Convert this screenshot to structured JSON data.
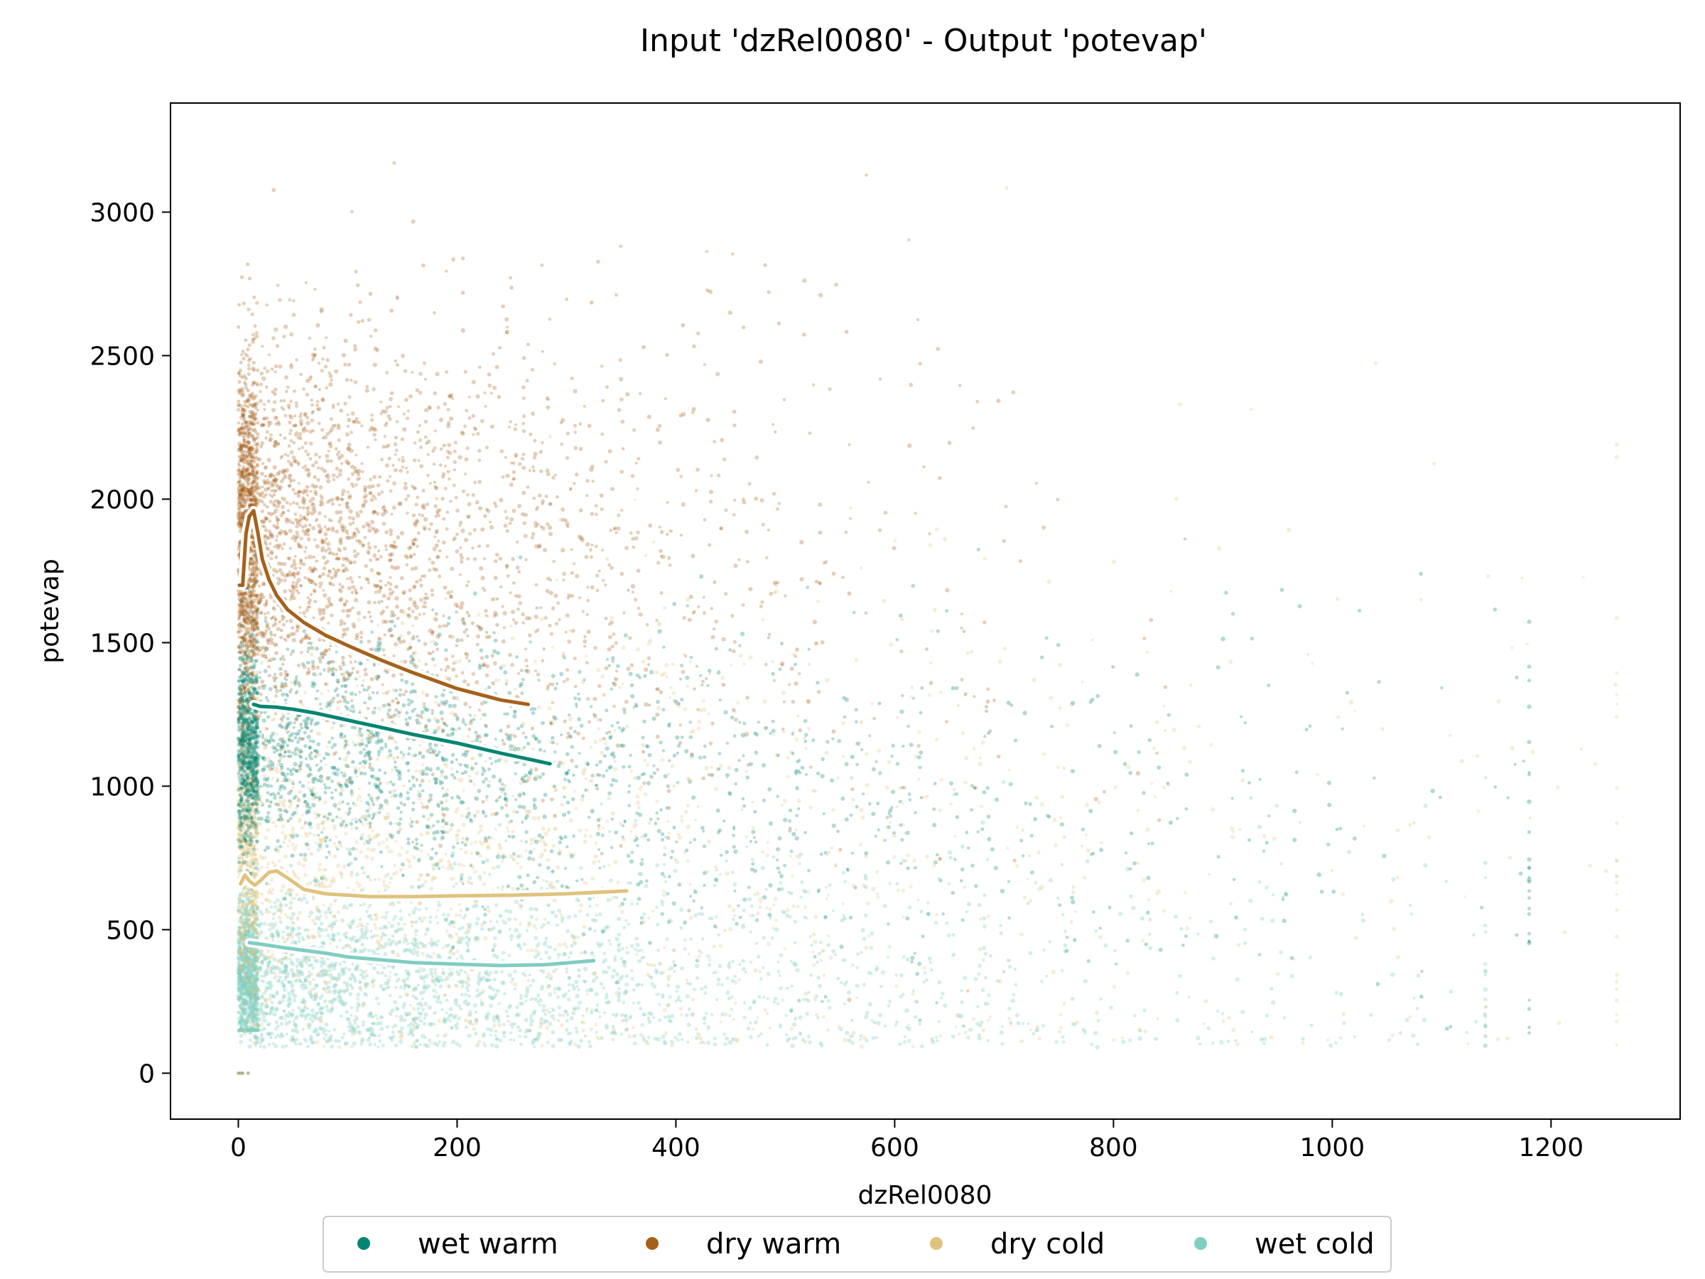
{
  "chart_data": {
    "type": "scatter",
    "title": "Input 'dzRel0080' - Output 'potevap'",
    "xlabel": "dzRel0080",
    "ylabel": "potevap",
    "xlim": [
      -62,
      1318
    ],
    "ylim": [
      -160,
      3380
    ],
    "xticks": [
      0,
      200,
      400,
      600,
      800,
      1000,
      1200
    ],
    "yticks": [
      0,
      500,
      1000,
      1500,
      2000,
      2500,
      3000
    ],
    "grid": false,
    "legend_position": "bottom-center",
    "series": [
      {
        "name": "wet warm",
        "color": "#018571",
        "trend": {
          "x": [
            14,
            20,
            35,
            50,
            70,
            100,
            130,
            160,
            200,
            240,
            285
          ],
          "y": [
            1285,
            1278,
            1275,
            1268,
            1255,
            1230,
            1205,
            1180,
            1150,
            1115,
            1078
          ]
        },
        "cloud": {
          "x_max": 1180,
          "y_center": 1150,
          "y_spread": 190,
          "x_decay": 300,
          "n_points": 1800,
          "opacity": 0.3
        }
      },
      {
        "name": "dry warm",
        "color": "#a6611a",
        "trend": {
          "x": [
            1,
            4,
            7,
            10,
            14,
            18,
            22,
            28,
            35,
            45,
            60,
            80,
            100,
            130,
            160,
            200,
            240,
            265
          ],
          "y": [
            1700,
            1700,
            1880,
            1940,
            1960,
            1880,
            1790,
            1720,
            1665,
            1615,
            1570,
            1525,
            1490,
            1440,
            1395,
            1340,
            1300,
            1285
          ]
        },
        "cloud": {
          "x_max": 900,
          "y_center": 1900,
          "y_spread": 320,
          "x_decay": 160,
          "n_points": 2600,
          "opacity": 0.3
        }
      },
      {
        "name": "dry cold",
        "color": "#dfc27d",
        "trend": {
          "x": [
            2,
            6,
            10,
            15,
            20,
            28,
            35,
            45,
            60,
            80,
            120,
            160,
            200,
            250,
            300,
            355
          ],
          "y": [
            660,
            690,
            670,
            655,
            670,
            700,
            705,
            680,
            640,
            625,
            615,
            615,
            618,
            620,
            625,
            635
          ]
        },
        "cloud": {
          "x_max": 1260,
          "y_center": 820,
          "y_spread": 300,
          "x_decay": 320,
          "n_points": 1800,
          "opacity": 0.3
        }
      },
      {
        "name": "wet cold",
        "color": "#80cdc1",
        "trend": {
          "x": [
            10,
            20,
            40,
            60,
            80,
            100,
            130,
            160,
            200,
            240,
            280,
            325
          ],
          "y": [
            455,
            450,
            438,
            428,
            418,
            405,
            395,
            385,
            380,
            375,
            378,
            392
          ]
        },
        "cloud": {
          "x_max": 1140,
          "y_center": 340,
          "y_spread": 150,
          "x_decay": 260,
          "n_points": 2400,
          "opacity": 0.35
        }
      }
    ]
  }
}
